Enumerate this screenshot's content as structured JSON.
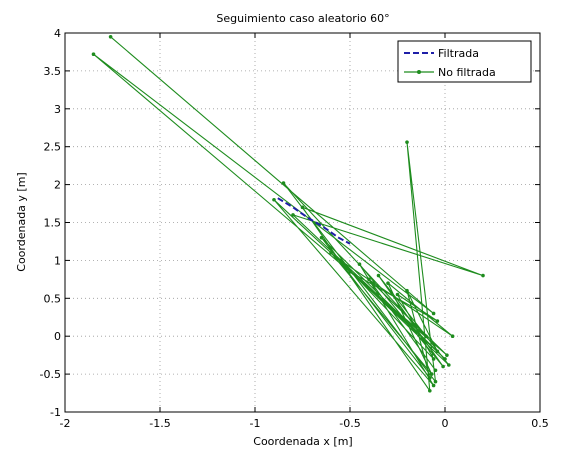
{
  "chart_data": {
    "type": "line",
    "title": "Seguimiento caso aleatorio 60°",
    "xlabel": "Coordenada x [m]",
    "ylabel": "Coordenada y [m]",
    "xlim": [
      -2,
      0.5
    ],
    "ylim": [
      -1,
      4
    ],
    "xticks": [
      -2,
      -1.5,
      -1,
      -0.5,
      0,
      0.5
    ],
    "xtick_labels": [
      "-2",
      "-1.5",
      "-1",
      "-0.5",
      "0",
      "0.5"
    ],
    "yticks": [
      -1,
      -0.5,
      0,
      0.5,
      1,
      1.5,
      2,
      2.5,
      3,
      3.5,
      4
    ],
    "ytick_labels": [
      "-1",
      "-0.5",
      "0",
      "0.5",
      "1",
      "1.5",
      "2",
      "2.5",
      "3",
      "3.5",
      "4"
    ],
    "grid": true,
    "legend_position": "top-right",
    "series": [
      {
        "name": "Filtrada",
        "style": "dashed",
        "color": "#1f1fa8",
        "x": [
          -0.88,
          -0.8,
          -0.72,
          -0.64,
          -0.56,
          -0.5
        ],
        "y": [
          1.82,
          1.7,
          1.56,
          1.44,
          1.3,
          1.22
        ]
      },
      {
        "name": "No filtrada",
        "style": "solid-marker",
        "color": "#1e8c1e",
        "x": [
          -1.76,
          -0.06,
          -1.85,
          -0.1,
          -0.85,
          -0.05,
          -0.2,
          -0.08,
          -0.75,
          0.2,
          -0.8,
          -0.04,
          -0.2,
          -0.08,
          -0.65,
          0.0,
          -0.9,
          -0.06,
          -0.45,
          -0.01,
          -0.35,
          0.02,
          -0.6,
          -0.07,
          -0.3,
          0.04,
          -0.55,
          -0.06,
          -0.25,
          -0.04,
          -0.5,
          0.01,
          -0.4,
          -0.05
        ],
        "y": [
          3.95,
          0.3,
          3.72,
          0.0,
          2.02,
          -0.6,
          2.56,
          -0.72,
          1.7,
          0.8,
          1.6,
          -0.2,
          0.6,
          -0.55,
          1.3,
          -0.3,
          1.8,
          -0.65,
          0.95,
          -0.4,
          0.8,
          -0.38,
          1.1,
          -0.5,
          0.7,
          0.0,
          1.0,
          -0.3,
          0.55,
          0.2,
          0.85,
          -0.25,
          0.75,
          -0.45
        ]
      }
    ]
  }
}
